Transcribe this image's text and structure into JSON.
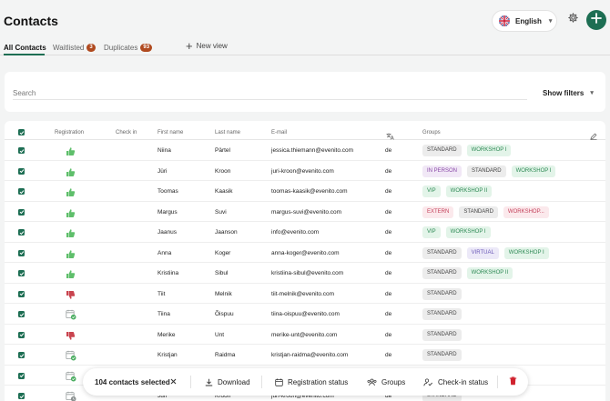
{
  "header": {
    "title": "Contacts",
    "language_label": "English",
    "language_flag": "uk-flag-icon",
    "settings_icon": "gear-icon",
    "add_icon": "plus-icon",
    "accent_color": "#1d6e53"
  },
  "tabs": [
    {
      "label": "All Contacts",
      "count": null,
      "active": true
    },
    {
      "label": "Waitlisted",
      "count": "3",
      "active": false
    },
    {
      "label": "Duplicates",
      "count": "93",
      "active": false
    }
  ],
  "new_view_label": "New view",
  "search": {
    "placeholder": "Search",
    "value": ""
  },
  "filters_label": "Show filters",
  "columns": [
    "Registration",
    "Check in",
    "First name",
    "Last name",
    "E-mail",
    "",
    "Groups"
  ],
  "rows": [
    {
      "reg": "thumb-up",
      "first": "Niina",
      "last": "Pärtel",
      "email": "jessica.thiemann@evenito.com",
      "lang": "de",
      "groups": [
        [
          "STANDARD",
          "standard"
        ],
        [
          "WORKSHOP I",
          "workshop"
        ]
      ]
    },
    {
      "reg": "thumb-up",
      "first": "Jüri",
      "last": "Kroon",
      "email": "juri-kroon@evenito.com",
      "lang": "de",
      "groups": [
        [
          "IN PERSON",
          "inperson"
        ],
        [
          "STANDARD",
          "standard"
        ],
        [
          "WORKSHOP I",
          "workshop"
        ]
      ]
    },
    {
      "reg": "thumb-up",
      "first": "Toomas",
      "last": "Kaasik",
      "email": "toomas-kaasik@evenito.com",
      "lang": "de",
      "groups": [
        [
          "VIP",
          "vip"
        ],
        [
          "WORKSHOP II",
          "workshop"
        ]
      ]
    },
    {
      "reg": "thumb-up",
      "first": "Margus",
      "last": "Suvi",
      "email": "margus-suvi@evenito.com",
      "lang": "de",
      "groups": [
        [
          "EXTERN",
          "extern"
        ],
        [
          "STANDARD",
          "standard"
        ],
        [
          "WORKSHOP...",
          "workshop-trunc"
        ]
      ]
    },
    {
      "reg": "thumb-up",
      "first": "Jaanus",
      "last": "Jaanson",
      "email": "info@evenito.com",
      "lang": "de",
      "groups": [
        [
          "VIP",
          "vip"
        ],
        [
          "WORKSHOP I",
          "workshop"
        ]
      ]
    },
    {
      "reg": "thumb-up",
      "first": "Anna",
      "last": "Koger",
      "email": "anna-koger@evenito.com",
      "lang": "de",
      "groups": [
        [
          "STANDARD",
          "standard"
        ],
        [
          "VIRTUAL",
          "virtual"
        ],
        [
          "WORKSHOP I",
          "workshop"
        ]
      ]
    },
    {
      "reg": "thumb-up",
      "first": "Kristiina",
      "last": "Sibul",
      "email": "kristiina-sibul@evenito.com",
      "lang": "de",
      "groups": [
        [
          "STANDARD",
          "standard"
        ],
        [
          "WORKSHOP II",
          "workshop"
        ]
      ]
    },
    {
      "reg": "thumb-down",
      "first": "Tiit",
      "last": "Melnik",
      "email": "tiit-melnik@evenito.com",
      "lang": "de",
      "groups": [
        [
          "STANDARD",
          "standard"
        ]
      ]
    },
    {
      "reg": "calendar-check",
      "first": "Tiina",
      "last": "Õispuu",
      "email": "tiina-oispuu@evenito.com",
      "lang": "de",
      "groups": [
        [
          "STANDARD",
          "standard"
        ]
      ]
    },
    {
      "reg": "thumb-down",
      "first": "Merike",
      "last": "Unt",
      "email": "merike-unt@evenito.com",
      "lang": "de",
      "groups": [
        [
          "STANDARD",
          "standard"
        ]
      ]
    },
    {
      "reg": "calendar-check",
      "first": "Kristjan",
      "last": "Raidma",
      "email": "kristjan-raidma@evenito.com",
      "lang": "de",
      "groups": [
        [
          "STANDARD",
          "standard"
        ]
      ]
    },
    {
      "reg": "calendar-check",
      "first": "",
      "last": "",
      "email": "",
      "lang": "",
      "groups": []
    },
    {
      "reg": "calendar-clock",
      "first": "Jüri",
      "last": "Kroon",
      "email": "juri-kroon@evenito.com",
      "lang": "de",
      "groups": [
        [
          "STANDARD",
          "standard"
        ]
      ]
    }
  ],
  "action_bar": {
    "selected_label": "104 contacts selected",
    "download_label": "Download",
    "registration_status_label": "Registration status",
    "groups_label": "Groups",
    "checkin_status_label": "Check-in status"
  }
}
